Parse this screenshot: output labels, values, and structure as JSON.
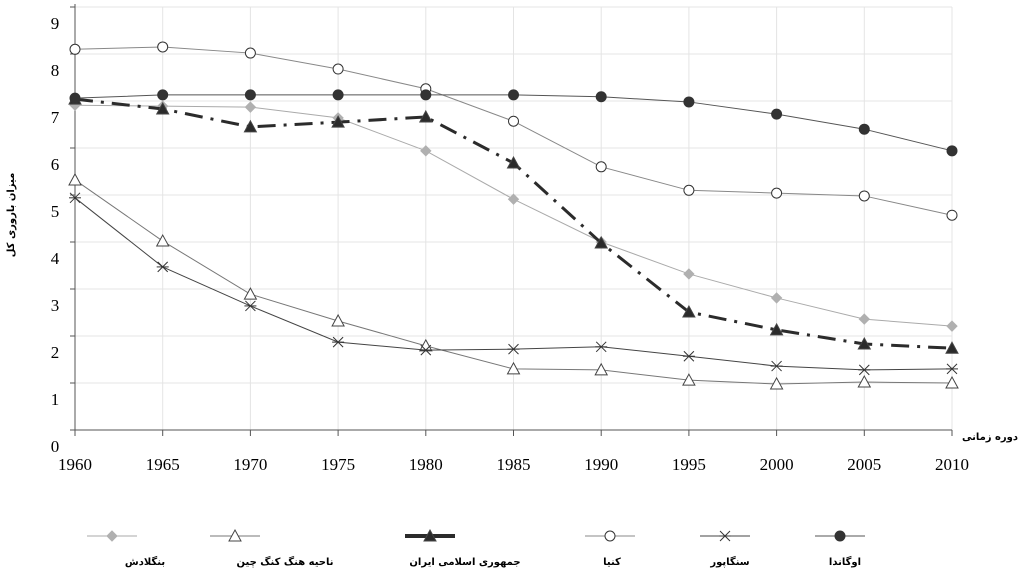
{
  "chart_data": {
    "type": "line",
    "y_label": "میزان باروری کل",
    "x_label": "دوره زمانی",
    "x": [
      1960,
      1965,
      1970,
      1975,
      1980,
      1985,
      1990,
      1995,
      2000,
      2005,
      2010
    ],
    "xlim": [
      1960,
      2010
    ],
    "xticks": [
      1960,
      1965,
      1970,
      1975,
      1980,
      1985,
      1990,
      1995,
      2000,
      2005,
      2010
    ],
    "ylim": [
      0,
      9
    ],
    "yticks": [
      0,
      1,
      2,
      3,
      4,
      5,
      6,
      7,
      8,
      9
    ],
    "grid": true,
    "legend": "bottom",
    "series": [
      {
        "name": "بنگلادش",
        "color": "#aaaaaa",
        "marker": "diamond",
        "dashed": false,
        "values": [
          6.91,
          6.89,
          6.87,
          6.64,
          5.94,
          4.91,
          4.0,
          3.32,
          2.81,
          2.36,
          2.21
        ]
      },
      {
        "name": "ناحیه هنگ کنگ چین",
        "color": "#777777",
        "marker": "triangle-open",
        "dashed": false,
        "values": [
          5.32,
          4.02,
          2.89,
          2.32,
          1.79,
          1.3,
          1.28,
          1.06,
          0.98,
          1.02,
          1.0
        ]
      },
      {
        "name": "جمهوری اسلامی ایران",
        "color": "#2b2b2b",
        "marker": "triangle-filled",
        "dashed": true,
        "values": [
          7.04,
          6.83,
          6.45,
          6.55,
          6.66,
          5.68,
          3.98,
          2.51,
          2.13,
          1.83,
          1.74
        ]
      },
      {
        "name": "کنیا",
        "color": "#888888",
        "marker": "circle-open",
        "dashed": false,
        "values": [
          8.1,
          8.15,
          8.02,
          7.68,
          7.26,
          6.57,
          5.6,
          5.1,
          5.04,
          4.98,
          4.57
        ]
      },
      {
        "name": "سنگاپور",
        "color": "#444444",
        "marker": "asterisk",
        "dashed": false,
        "values": [
          4.94,
          3.47,
          2.64,
          1.87,
          1.7,
          1.72,
          1.77,
          1.57,
          1.36,
          1.28,
          1.3
        ]
      },
      {
        "name": "اوگاندا",
        "color": "#555555",
        "marker": "circle-filled",
        "dashed": false,
        "values": [
          7.06,
          7.13,
          7.13,
          7.13,
          7.13,
          7.13,
          7.09,
          6.98,
          6.72,
          6.4,
          5.94
        ]
      }
    ]
  }
}
